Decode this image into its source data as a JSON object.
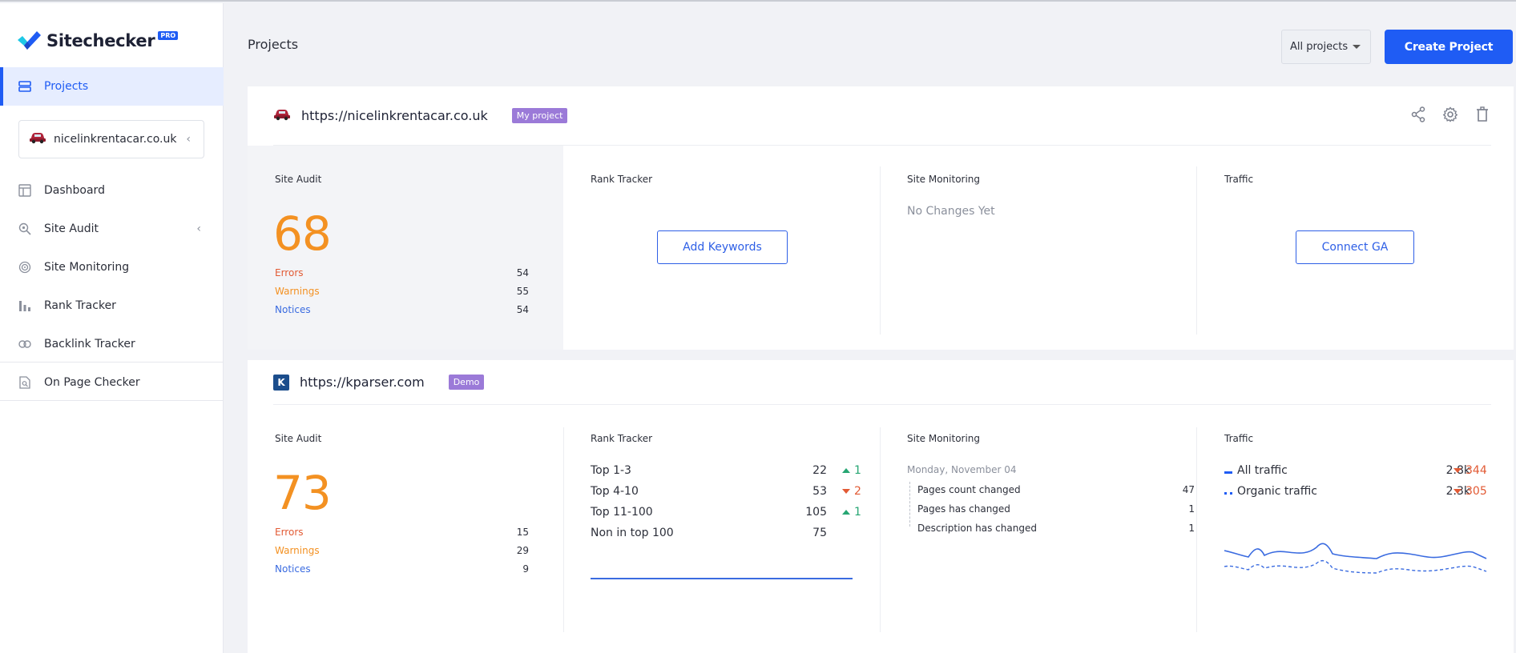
{
  "app": {
    "logo_text": "Sitechecker",
    "pro_badge": "PRO"
  },
  "sidebar": {
    "projects_label": "Projects",
    "current_project": "nicelinkrentacar.co.uk",
    "items": [
      {
        "label": "Dashboard",
        "icon": "dashboard-icon"
      },
      {
        "label": "Site Audit",
        "icon": "audit-search-icon"
      },
      {
        "label": "Site Monitoring",
        "icon": "monitoring-icon"
      },
      {
        "label": "Rank Tracker",
        "icon": "bar-chart-icon"
      },
      {
        "label": "Backlink Tracker",
        "icon": "link-icon"
      },
      {
        "label": "On Page Checker",
        "icon": "page-search-icon"
      }
    ]
  },
  "header": {
    "title": "Projects",
    "filter_value": "All projects",
    "create_button": "Create Project"
  },
  "colors": {
    "accent": "#1f5cf4",
    "score": "#f39122",
    "errors": "#e25a34",
    "warnings": "#f39122",
    "notices": "#3a6be0",
    "tag": "#9b7ad8",
    "up": "#27a673",
    "down": "#e25a34"
  },
  "projects": [
    {
      "url": "https://nicelinkrentacar.co.uk",
      "tag": "My project",
      "site_audit": {
        "title": "Site Audit",
        "score": "68",
        "errors_label": "Errors",
        "errors": "54",
        "warnings_label": "Warnings",
        "warnings": "55",
        "notices_label": "Notices",
        "notices": "54"
      },
      "rank_tracker": {
        "title": "Rank Tracker",
        "button": "Add Keywords"
      },
      "site_monitoring": {
        "title": "Site Monitoring",
        "empty": "No Changes Yet"
      },
      "traffic": {
        "title": "Traffic",
        "button": "Connect GA"
      }
    },
    {
      "url": "https://kparser.com",
      "favicon_letter": "K",
      "tag": "Demo",
      "site_audit": {
        "title": "Site Audit",
        "score": "73",
        "errors_label": "Errors",
        "errors": "15",
        "warnings_label": "Warnings",
        "warnings": "29",
        "notices_label": "Notices",
        "notices": "9"
      },
      "rank_tracker": {
        "title": "Rank Tracker",
        "rows": [
          {
            "label": "Top 1-3",
            "value": "22",
            "delta": "1",
            "dir": "up"
          },
          {
            "label": "Top 4-10",
            "value": "53",
            "delta": "2",
            "dir": "down"
          },
          {
            "label": "Top 11-100",
            "value": "105",
            "delta": "1",
            "dir": "up"
          },
          {
            "label": "Non in top 100",
            "value": "75",
            "delta": "",
            "dir": ""
          }
        ]
      },
      "site_monitoring": {
        "title": "Site Monitoring",
        "date": "Monday, November 04",
        "rows": [
          {
            "label": "Pages count changed",
            "value": "47"
          },
          {
            "label": "Pages has changed",
            "value": "1"
          },
          {
            "label": "Description has changed",
            "value": "1"
          }
        ]
      },
      "traffic": {
        "title": "Traffic",
        "rows": [
          {
            "label": "All traffic",
            "value": "2.8k",
            "delta": "344",
            "dir": "down"
          },
          {
            "label": "Organic traffic",
            "value": "2.3k",
            "delta": "305",
            "dir": "down"
          }
        ]
      }
    }
  ]
}
